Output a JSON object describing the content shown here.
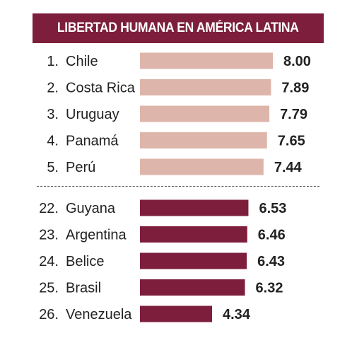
{
  "title": "LIBERTAD HUMANA EN AMÉRICA LATINA",
  "colors": {
    "header_bg": "#7d1f3c",
    "top_bar": "#deb5aa",
    "bottom_bar": "#7d1f3c",
    "text": "#222222"
  },
  "chart_data": {
    "type": "bar",
    "orientation": "horizontal",
    "title": "LIBERTAD HUMANA EN AMÉRICA LATINA",
    "groups": [
      {
        "rows": [
          {
            "rank": "1.",
            "country": "Chile",
            "value": 8.0,
            "label": "8.00"
          },
          {
            "rank": "2.",
            "country": "Costa Rica",
            "value": 7.89,
            "label": "7.89"
          },
          {
            "rank": "3.",
            "country": "Uruguay",
            "value": 7.79,
            "label": "7.79"
          },
          {
            "rank": "4.",
            "country": "Panamá",
            "value": 7.65,
            "label": "7.65"
          },
          {
            "rank": "5.",
            "country": "Perú",
            "value": 7.44,
            "label": "7.44"
          }
        ]
      },
      {
        "rows": [
          {
            "rank": "22.",
            "country": "Guyana",
            "value": 6.53,
            "label": "6.53"
          },
          {
            "rank": "23.",
            "country": "Argentina",
            "value": 6.46,
            "label": "6.46"
          },
          {
            "rank": "24.",
            "country": "Belice",
            "value": 6.43,
            "label": "6.43"
          },
          {
            "rank": "25.",
            "country": "Brasil",
            "value": 6.32,
            "label": "6.32"
          },
          {
            "rank": "26.",
            "country": "Venezuela",
            "value": 4.34,
            "label": "4.34"
          }
        ]
      }
    ],
    "grid": false,
    "legend": "none"
  }
}
